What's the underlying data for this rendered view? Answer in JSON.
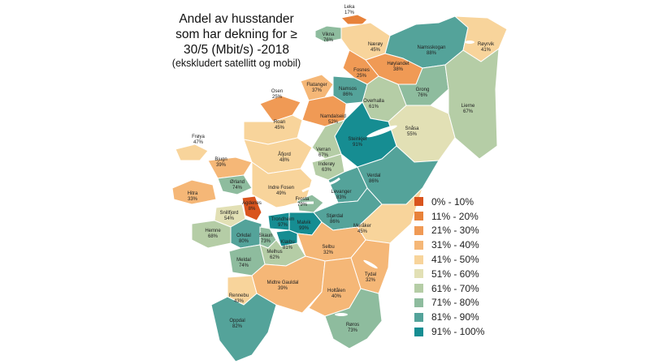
{
  "title": {
    "line1": "Andel av husstander",
    "line2": "som har dekning for ≥",
    "line3": "30/5 (Mbit/s) -2018",
    "line4": "(ekskludert satellitt og mobil)"
  },
  "legend": [
    {
      "label": "0% - 10%",
      "color": "#d9541d"
    },
    {
      "label": "11% - 20%",
      "color": "#e8823a"
    },
    {
      "label": "21% - 30%",
      "color": "#f09a55"
    },
    {
      "label": "31% - 40%",
      "color": "#f5b777"
    },
    {
      "label": "41% - 50%",
      "color": "#f8d49b"
    },
    {
      "label": "51% - 60%",
      "color": "#e2e0b5"
    },
    {
      "label": "61% - 70%",
      "color": "#b5cda6"
    },
    {
      "label": "71% - 80%",
      "color": "#8ebc9e"
    },
    {
      "label": "81% - 90%",
      "color": "#54a39a"
    },
    {
      "label": "91% - 100%",
      "color": "#168d92"
    }
  ],
  "municipalities": [
    {
      "name": "Leka",
      "value": "17%"
    },
    {
      "name": "Vikna",
      "value": "76%"
    },
    {
      "name": "Nærøy",
      "value": "45%"
    },
    {
      "name": "Namsskogan",
      "value": "88%"
    },
    {
      "name": "Røyrvik",
      "value": "41%"
    },
    {
      "name": "Høylandet",
      "value": "38%"
    },
    {
      "name": "Fosnes",
      "value": "25%"
    },
    {
      "name": "Flatanger",
      "value": "37%"
    },
    {
      "name": "Namsos",
      "value": "86%"
    },
    {
      "name": "Grong",
      "value": "76%"
    },
    {
      "name": "Osen",
      "value": "25%"
    },
    {
      "name": "Overhalla",
      "value": "61%"
    },
    {
      "name": "Lierne",
      "value": "67%"
    },
    {
      "name": "Namdalseid",
      "value": "52%"
    },
    {
      "name": "Roan",
      "value": "45%"
    },
    {
      "name": "Snåsa",
      "value": "55%"
    },
    {
      "name": "Frøya",
      "value": "47%"
    },
    {
      "name": "Steinkjer",
      "value": "91%"
    },
    {
      "name": "Verran",
      "value": "67%"
    },
    {
      "name": "Åfjord",
      "value": "48%"
    },
    {
      "name": "Bjugn",
      "value": "39%"
    },
    {
      "name": "Inderøy",
      "value": "63%"
    },
    {
      "name": "Verdal",
      "value": "86%"
    },
    {
      "name": "Ørland",
      "value": "74%"
    },
    {
      "name": "Indre Fosen",
      "value": "49%"
    },
    {
      "name": "Hitra",
      "value": "33%"
    },
    {
      "name": "Levanger",
      "value": "83%"
    },
    {
      "name": "Agdenes",
      "value": "8%"
    },
    {
      "name": "Frosta",
      "value": "79%"
    },
    {
      "name": "Snillfjord",
      "value": "54%"
    },
    {
      "name": "Stjørdal",
      "value": "86%"
    },
    {
      "name": "Trondheim",
      "value": "97%"
    },
    {
      "name": "Malvik",
      "value": "99%"
    },
    {
      "name": "Meråker",
      "value": "45%"
    },
    {
      "name": "Hemne",
      "value": "68%"
    },
    {
      "name": "Orkdal",
      "value": "80%"
    },
    {
      "name": "Skaun",
      "value": "73%"
    },
    {
      "name": "Klæbu",
      "value": "81%"
    },
    {
      "name": "Selbu",
      "value": "32%"
    },
    {
      "name": "Melhus",
      "value": "62%"
    },
    {
      "name": "Meldal",
      "value": "74%"
    },
    {
      "name": "Tydal",
      "value": "32%"
    },
    {
      "name": "Midtre Gauldal",
      "value": "39%"
    },
    {
      "name": "Rennebu",
      "value": "43%"
    },
    {
      "name": "Holtålen",
      "value": "40%"
    },
    {
      "name": "Oppdal",
      "value": "82%"
    },
    {
      "name": "Røros",
      "value": "73%"
    }
  ]
}
